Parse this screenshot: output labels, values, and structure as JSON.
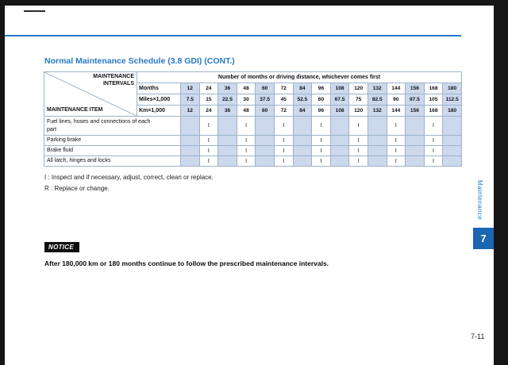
{
  "page": {
    "title": "Normal Maintenance Schedule (3.8 GDI) (CONT.)",
    "page_number": "7-11",
    "chapter_tab": "7",
    "side_label": "Maintenance"
  },
  "table": {
    "corner_top": "MAINTENANCE INTERVALS",
    "corner_bottom": "MAINTENANCE ITEM",
    "span_header": "Number of months or driving distance, whichever comes first",
    "interval_rows": [
      {
        "label": "Months",
        "values": [
          "12",
          "24",
          "36",
          "48",
          "60",
          "72",
          "84",
          "96",
          "108",
          "120",
          "132",
          "144",
          "156",
          "168",
          "180"
        ]
      },
      {
        "label": "Miles×1,000",
        "values": [
          "7.5",
          "15",
          "22.5",
          "30",
          "37.5",
          "45",
          "52.5",
          "60",
          "67.5",
          "75",
          "82.5",
          "90",
          "97.5",
          "105",
          "112.5"
        ]
      },
      {
        "label": "Km×1,000",
        "values": [
          "12",
          "24",
          "36",
          "48",
          "60",
          "72",
          "84",
          "96",
          "108",
          "120",
          "132",
          "144",
          "156",
          "168",
          "180"
        ]
      }
    ],
    "items": [
      {
        "name": "Fuel lines, hoses and connections of each part",
        "marks": [
          "",
          "I",
          "",
          "I",
          "",
          "I",
          "",
          "I",
          "",
          "I",
          "",
          "I",
          "",
          "I",
          ""
        ]
      },
      {
        "name": "Parking brake",
        "marks": [
          "",
          "I",
          "",
          "I",
          "",
          "I",
          "",
          "I",
          "",
          "I",
          "",
          "I",
          "",
          "I",
          ""
        ]
      },
      {
        "name": "Brake fluid",
        "marks": [
          "",
          "I",
          "",
          "I",
          "",
          "I",
          "",
          "I",
          "",
          "I",
          "",
          "I",
          "",
          "I",
          ""
        ]
      },
      {
        "name": "All latch, hinges and locks",
        "marks": [
          "",
          "I",
          "",
          "I",
          "",
          "I",
          "",
          "I",
          "",
          "I",
          "",
          "I",
          "",
          "I",
          ""
        ]
      }
    ]
  },
  "legend": {
    "line1": "I : Inspect and if necessary, adjust, correct, clean or replace.",
    "line2": "R : Replace or change."
  },
  "notice": {
    "label": "NOTICE",
    "text": "After 180,000 km or 180 months continue to follow the prescribed maintenance intervals."
  },
  "colors": {
    "accent": "#2878c6",
    "tab": "#1b66b3",
    "stripe": "#ccd8eb",
    "border": "#9db3cb",
    "frame": "#161616"
  }
}
